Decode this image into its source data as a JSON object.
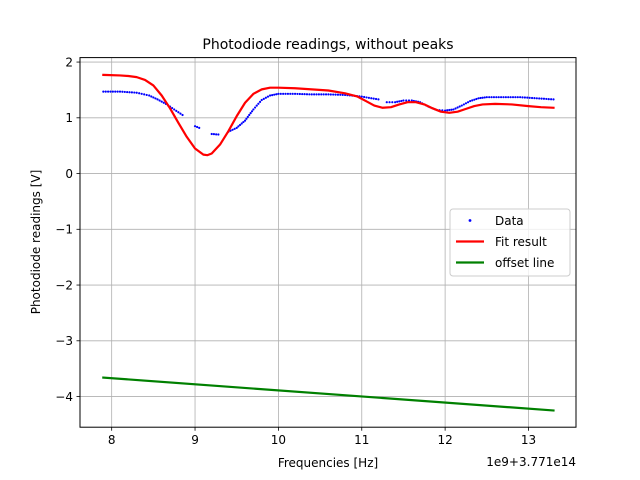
{
  "chart_data": {
    "type": "line",
    "title": "Photodiode readings, without peaks",
    "xlabel": "Frequencies [Hz]",
    "ylabel": "Photodiode readings [V]",
    "x_offset_label": "1e9+3.771e14",
    "xlim": [
      7.62,
      13.57
    ],
    "ylim": [
      -4.55,
      2.08
    ],
    "x_ticks": [
      8,
      9,
      10,
      11,
      12,
      13
    ],
    "x_tick_labels": [
      "8",
      "9",
      "10",
      "11",
      "12",
      "13"
    ],
    "y_ticks": [
      2,
      1,
      0,
      -1,
      -2,
      -3,
      -4
    ],
    "y_tick_labels": [
      "2",
      "1",
      "0",
      "−1",
      "−2",
      "−3",
      "−4"
    ],
    "grid": true,
    "legend_position": "center-right",
    "series": [
      {
        "name": "Data",
        "kind": "scatter",
        "color": "#0000ff",
        "segments": [
          [
            [
              7.9,
              1.47
            ],
            [
              8.1,
              1.47
            ],
            [
              8.3,
              1.45
            ],
            [
              8.45,
              1.4
            ],
            [
              8.55,
              1.33
            ],
            [
              8.65,
              1.25
            ],
            [
              8.75,
              1.15
            ],
            [
              8.85,
              1.05
            ]
          ],
          [
            [
              9.0,
              0.85
            ],
            [
              9.05,
              0.82
            ]
          ],
          [
            [
              9.2,
              0.71
            ],
            [
              9.28,
              0.7
            ]
          ],
          [
            [
              9.4,
              0.75
            ],
            [
              9.5,
              0.82
            ],
            [
              9.6,
              0.95
            ],
            [
              9.7,
              1.15
            ],
            [
              9.8,
              1.32
            ],
            [
              9.9,
              1.4
            ],
            [
              10.0,
              1.43
            ],
            [
              10.2,
              1.43
            ],
            [
              10.4,
              1.42
            ],
            [
              10.6,
              1.42
            ],
            [
              10.8,
              1.41
            ],
            [
              11.0,
              1.38
            ],
            [
              11.2,
              1.33
            ]
          ],
          [
            [
              11.3,
              1.28
            ],
            [
              11.4,
              1.28
            ],
            [
              11.5,
              1.31
            ],
            [
              11.6,
              1.31
            ],
            [
              11.7,
              1.28
            ],
            [
              11.8,
              1.2
            ],
            [
              11.9,
              1.14
            ],
            [
              12.0,
              1.13
            ],
            [
              12.1,
              1.15
            ],
            [
              12.2,
              1.22
            ],
            [
              12.3,
              1.3
            ],
            [
              12.4,
              1.35
            ],
            [
              12.5,
              1.37
            ],
            [
              12.7,
              1.37
            ],
            [
              12.9,
              1.37
            ],
            [
              13.1,
              1.35
            ],
            [
              13.3,
              1.33
            ]
          ]
        ]
      },
      {
        "name": "Fit result",
        "kind": "line",
        "color": "#ff0000",
        "points": [
          [
            7.9,
            1.77
          ],
          [
            8.1,
            1.76
          ],
          [
            8.2,
            1.75
          ],
          [
            8.3,
            1.73
          ],
          [
            8.4,
            1.68
          ],
          [
            8.5,
            1.58
          ],
          [
            8.6,
            1.4
          ],
          [
            8.7,
            1.17
          ],
          [
            8.8,
            0.91
          ],
          [
            8.9,
            0.66
          ],
          [
            9.0,
            0.45
          ],
          [
            9.1,
            0.34
          ],
          [
            9.15,
            0.33
          ],
          [
            9.2,
            0.36
          ],
          [
            9.3,
            0.52
          ],
          [
            9.4,
            0.76
          ],
          [
            9.5,
            1.03
          ],
          [
            9.6,
            1.27
          ],
          [
            9.7,
            1.43
          ],
          [
            9.8,
            1.51
          ],
          [
            9.9,
            1.54
          ],
          [
            10.0,
            1.54
          ],
          [
            10.2,
            1.53
          ],
          [
            10.4,
            1.51
          ],
          [
            10.6,
            1.49
          ],
          [
            10.8,
            1.44
          ],
          [
            10.95,
            1.38
          ],
          [
            11.05,
            1.3
          ],
          [
            11.15,
            1.22
          ],
          [
            11.25,
            1.18
          ],
          [
            11.35,
            1.19
          ],
          [
            11.45,
            1.24
          ],
          [
            11.55,
            1.28
          ],
          [
            11.65,
            1.28
          ],
          [
            11.75,
            1.24
          ],
          [
            11.85,
            1.17
          ],
          [
            11.95,
            1.11
          ],
          [
            12.05,
            1.09
          ],
          [
            12.15,
            1.11
          ],
          [
            12.25,
            1.16
          ],
          [
            12.35,
            1.21
          ],
          [
            12.45,
            1.24
          ],
          [
            12.6,
            1.25
          ],
          [
            12.8,
            1.24
          ],
          [
            13.0,
            1.21
          ],
          [
            13.15,
            1.19
          ],
          [
            13.3,
            1.18
          ]
        ]
      },
      {
        "name": "offset line",
        "kind": "line",
        "color": "#008000",
        "points": [
          [
            7.9,
            -3.66
          ],
          [
            13.3,
            -4.25
          ]
        ]
      }
    ]
  }
}
